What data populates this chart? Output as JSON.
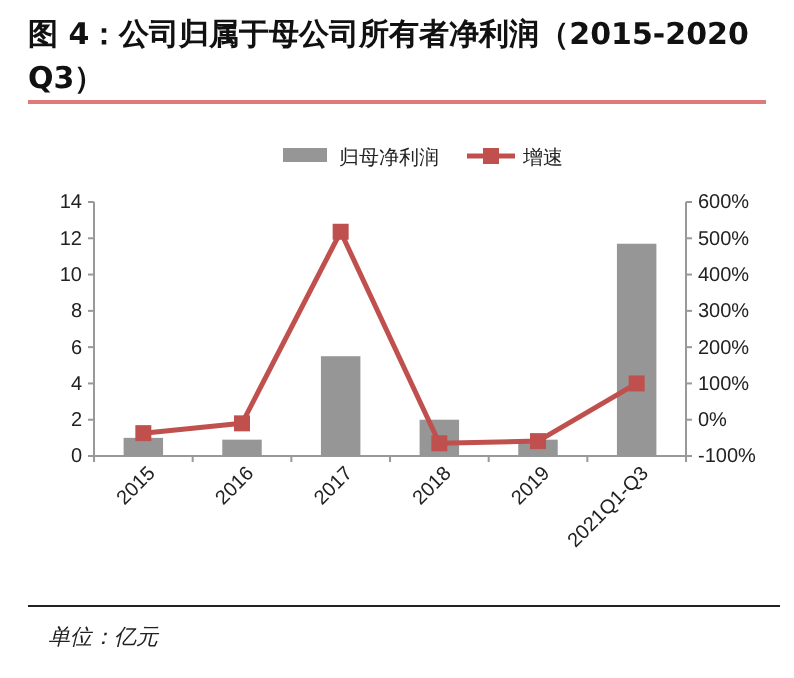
{
  "chart_data": {
    "type": "bar",
    "title": "图 4：公司归属于母公司所有者净利润（2015-2020Q3）",
    "categories": [
      "2015",
      "2016",
      "2017",
      "2018",
      "2019",
      "2021Q1-Q3"
    ],
    "series": [
      {
        "name": "归母净利润",
        "color": "#969696",
        "values": [
          1.0,
          0.9,
          5.5,
          2.0,
          0.9,
          11.7
        ]
      },
      {
        "name": "增速",
        "type": "line",
        "axis": "y2",
        "color": "#c0504d",
        "marker": "square",
        "values": [
          -37,
          -10,
          518,
          -65,
          -59,
          100
        ]
      }
    ],
    "ylim": [
      0,
      14
    ],
    "yticks": [
      0,
      2,
      4,
      6,
      8,
      10,
      12,
      14
    ],
    "y2lim": [
      -100,
      600
    ],
    "y2ticks": [
      {
        "value": -100,
        "label": "-100%"
      },
      {
        "value": 0,
        "label": "0%"
      },
      {
        "value": 100,
        "label": "100%"
      },
      {
        "value": 200,
        "label": "200%"
      },
      {
        "value": 300,
        "label": "300%"
      },
      {
        "value": 400,
        "label": "400%"
      },
      {
        "value": 500,
        "label": "500%"
      },
      {
        "value": 600,
        "label": "600%"
      }
    ],
    "legend": "top",
    "grid": false,
    "annotations": [
      "单位：亿元"
    ]
  }
}
